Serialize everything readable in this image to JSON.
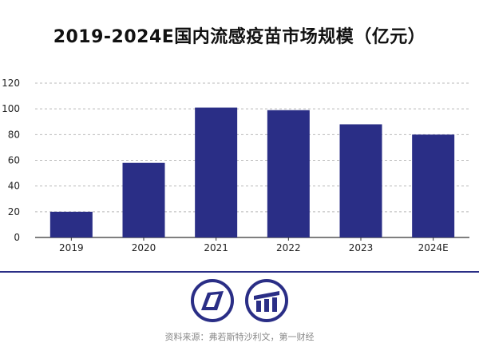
{
  "colors": {
    "bar": "#2a2e86",
    "grid": "#b9b9b9",
    "axis": "#333333",
    "divider": "#2a2e86",
    "logo": "#2a2e86"
  },
  "chart_data": {
    "type": "bar",
    "title": "2019-2024E国内流感疫苗市场规模（亿元）",
    "categories": [
      "2019",
      "2020",
      "2021",
      "2022",
      "2023",
      "2024E"
    ],
    "values": [
      20,
      58,
      101,
      99,
      88,
      80
    ],
    "yticks": [
      0,
      20,
      40,
      60,
      80,
      100,
      120
    ],
    "ylim": [
      0,
      120
    ],
    "grid": true,
    "legend": "none"
  },
  "logos": {
    "left_icon": "first-finance-parallelogram-icon",
    "right_icon": "first-finance-bars-icon"
  },
  "source": "资料来源：弗若斯特沙利文，第一财经"
}
